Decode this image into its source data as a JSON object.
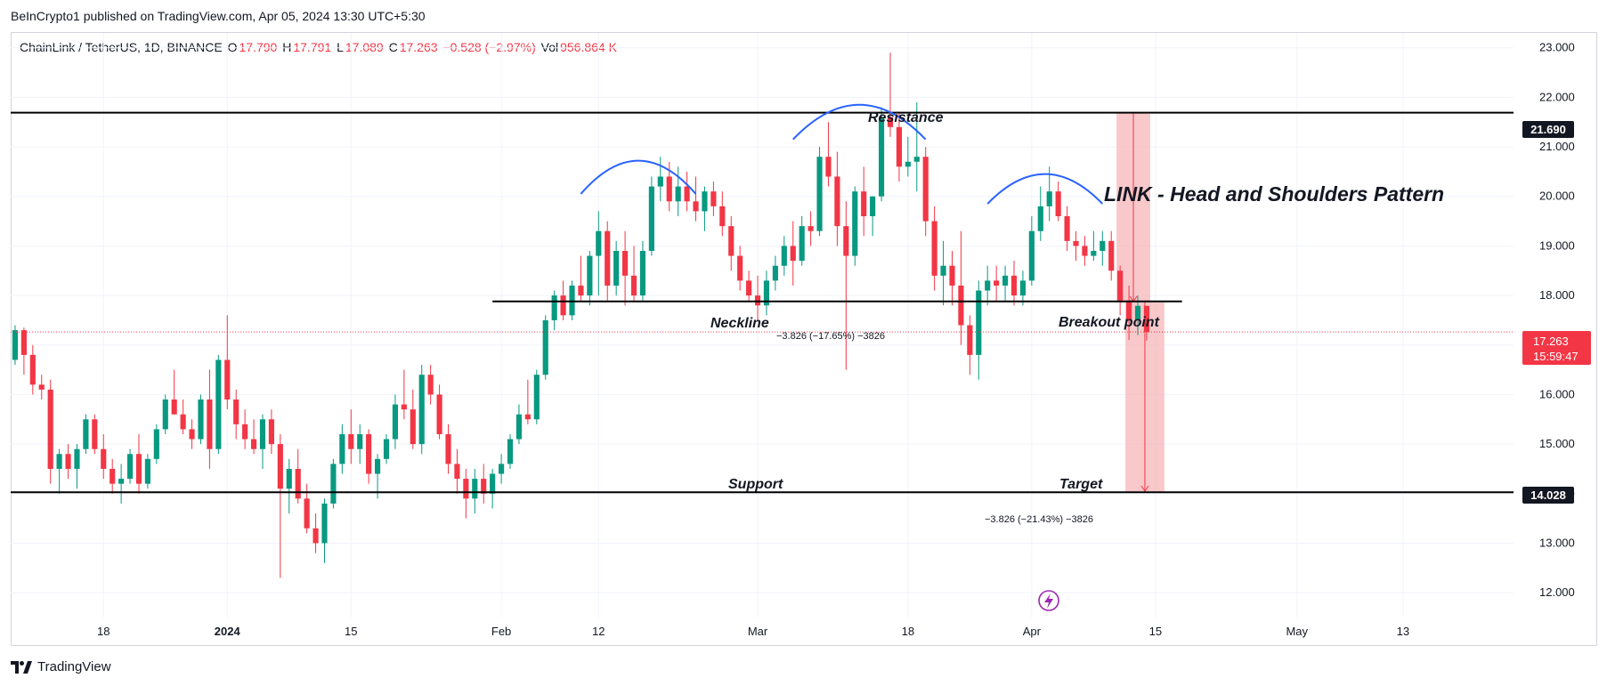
{
  "header": {
    "published": "BeInCrypto1 published on TradingView.com, Apr 05, 2024 13:30 UTC+5:30"
  },
  "legend": {
    "symbol": "ChainLink / TetherUS, 1D, BINANCE",
    "o_label": "O",
    "o_value": "17.790",
    "h_label": "H",
    "h_value": "17.791",
    "l_label": "L",
    "l_value": "17.089",
    "c_label": "C",
    "c_value": "17.263",
    "change": "−0.528 (−2.97%)",
    "vol_label": "Vol",
    "vol_value": "956.864 K"
  },
  "footer": {
    "brand": "TradingView"
  },
  "chart_data": {
    "type": "candlestick",
    "title": "LINK - Head and Shoulders Pattern",
    "ylim": [
      11.5,
      23.3
    ],
    "y_ticks": [
      12,
      13,
      14,
      15,
      16,
      17,
      18,
      19,
      20,
      21,
      22,
      23
    ],
    "y_tick_labels": [
      "12.000",
      "13.000",
      "14.000",
      "15.000",
      "16.000",
      "17.000",
      "18.000",
      "19.000",
      "20.000",
      "21.000",
      "22.000",
      "23.000"
    ],
    "x_range": [
      "2023-12-08",
      "2024-05-26"
    ],
    "x_ticks": [
      {
        "date": "2023-12-18",
        "label": "18"
      },
      {
        "date": "2024-01-01",
        "label": "2024"
      },
      {
        "date": "2024-01-15",
        "label": "15"
      },
      {
        "date": "2024-02-01",
        "label": "Feb"
      },
      {
        "date": "2024-02-12",
        "label": "12"
      },
      {
        "date": "2024-03-01",
        "label": "Mar"
      },
      {
        "date": "2024-03-18",
        "label": "18"
      },
      {
        "date": "2024-04-01",
        "label": "Apr"
      },
      {
        "date": "2024-04-15",
        "label": "15"
      },
      {
        "date": "2024-05-01",
        "label": "May"
      },
      {
        "date": "2024-05-13",
        "label": "13"
      }
    ],
    "candle_start_date": "2023-12-08",
    "candles": [
      [
        16.7,
        17.4,
        16.6,
        17.3
      ],
      [
        17.3,
        17.35,
        16.4,
        16.8
      ],
      [
        16.8,
        17.0,
        16.0,
        16.2
      ],
      [
        16.2,
        16.4,
        15.9,
        16.1
      ],
      [
        16.1,
        16.3,
        14.2,
        14.5
      ],
      [
        14.5,
        14.9,
        14.0,
        14.8
      ],
      [
        14.8,
        15.0,
        14.3,
        14.5
      ],
      [
        14.5,
        15.0,
        14.1,
        14.9
      ],
      [
        14.9,
        15.6,
        14.8,
        15.5
      ],
      [
        15.5,
        15.6,
        14.8,
        14.9
      ],
      [
        14.9,
        15.2,
        14.3,
        14.5
      ],
      [
        14.5,
        14.7,
        14.0,
        14.2
      ],
      [
        14.2,
        14.6,
        13.8,
        14.3
      ],
      [
        14.3,
        14.9,
        14.2,
        14.8
      ],
      [
        14.8,
        15.2,
        14.0,
        14.2
      ],
      [
        14.2,
        14.8,
        14.1,
        14.7
      ],
      [
        14.7,
        15.4,
        14.6,
        15.3
      ],
      [
        15.3,
        16.0,
        15.2,
        15.9
      ],
      [
        15.9,
        16.5,
        15.6,
        15.6
      ],
      [
        15.6,
        15.9,
        15.2,
        15.3
      ],
      [
        15.3,
        15.5,
        14.9,
        15.1
      ],
      [
        15.1,
        16.0,
        15.0,
        15.9
      ],
      [
        15.9,
        16.5,
        14.5,
        14.9
      ],
      [
        14.9,
        16.8,
        14.8,
        16.7
      ],
      [
        16.7,
        17.6,
        15.7,
        15.9
      ],
      [
        15.9,
        16.1,
        15.1,
        15.4
      ],
      [
        15.4,
        15.7,
        14.9,
        15.1
      ],
      [
        15.1,
        15.5,
        14.8,
        14.9
      ],
      [
        14.9,
        15.6,
        14.5,
        15.5
      ],
      [
        15.5,
        15.7,
        14.8,
        15.0
      ],
      [
        15.0,
        15.2,
        12.3,
        14.1
      ],
      [
        14.1,
        14.7,
        13.6,
        14.5
      ],
      [
        14.5,
        14.9,
        13.8,
        13.9
      ],
      [
        13.9,
        14.2,
        13.2,
        13.3
      ],
      [
        13.3,
        13.6,
        12.8,
        13.0
      ],
      [
        13.0,
        13.9,
        12.6,
        13.8
      ],
      [
        13.8,
        14.7,
        13.7,
        14.6
      ],
      [
        14.6,
        15.4,
        14.4,
        15.2
      ],
      [
        15.2,
        15.7,
        14.6,
        14.9
      ],
      [
        14.9,
        15.4,
        14.6,
        15.2
      ],
      [
        15.2,
        15.3,
        14.2,
        14.4
      ],
      [
        14.4,
        14.8,
        13.9,
        14.7
      ],
      [
        14.7,
        15.2,
        14.6,
        15.1
      ],
      [
        15.1,
        16.0,
        14.9,
        15.8
      ],
      [
        15.8,
        16.5,
        15.5,
        15.7
      ],
      [
        15.7,
        16.1,
        14.9,
        15.0
      ],
      [
        15.0,
        16.6,
        14.8,
        16.4
      ],
      [
        16.4,
        16.6,
        15.8,
        16.0
      ],
      [
        16.0,
        16.2,
        15.1,
        15.2
      ],
      [
        15.2,
        15.4,
        14.4,
        14.6
      ],
      [
        14.6,
        14.9,
        14.0,
        14.3
      ],
      [
        14.3,
        14.5,
        13.5,
        13.9
      ],
      [
        13.9,
        14.5,
        13.6,
        14.3
      ],
      [
        14.3,
        14.6,
        13.8,
        14.0
      ],
      [
        14.0,
        14.5,
        13.7,
        14.4
      ],
      [
        14.4,
        14.8,
        14.2,
        14.6
      ],
      [
        14.6,
        15.2,
        14.5,
        15.1
      ],
      [
        15.1,
        15.8,
        15.0,
        15.6
      ],
      [
        15.6,
        16.3,
        15.4,
        15.5
      ],
      [
        15.5,
        16.5,
        15.4,
        16.4
      ],
      [
        16.4,
        17.6,
        16.3,
        17.5
      ],
      [
        17.5,
        18.1,
        17.3,
        18.0
      ],
      [
        18.0,
        18.3,
        17.5,
        17.6
      ],
      [
        17.6,
        18.3,
        17.5,
        18.2
      ],
      [
        18.2,
        18.8,
        17.9,
        18.0
      ],
      [
        18.0,
        18.9,
        17.8,
        18.8
      ],
      [
        18.8,
        19.7,
        18.0,
        19.3
      ],
      [
        19.3,
        19.5,
        17.9,
        18.2
      ],
      [
        18.2,
        19.1,
        18.0,
        18.9
      ],
      [
        18.9,
        19.3,
        17.8,
        18.4
      ],
      [
        18.4,
        19.0,
        17.9,
        18.0
      ],
      [
        18.0,
        19.1,
        17.9,
        18.9
      ],
      [
        18.9,
        20.4,
        18.8,
        20.2
      ],
      [
        20.2,
        20.8,
        19.9,
        20.4
      ],
      [
        20.4,
        20.7,
        19.7,
        19.9
      ],
      [
        19.9,
        20.6,
        19.6,
        20.2
      ],
      [
        20.2,
        20.5,
        19.7,
        19.9
      ],
      [
        19.9,
        20.4,
        19.5,
        19.7
      ],
      [
        19.7,
        20.2,
        19.3,
        20.1
      ],
      [
        20.1,
        20.3,
        19.6,
        19.8
      ],
      [
        19.8,
        20.1,
        19.2,
        19.4
      ],
      [
        19.4,
        19.6,
        18.5,
        18.8
      ],
      [
        18.8,
        19.0,
        18.1,
        18.3
      ],
      [
        18.3,
        18.5,
        17.9,
        18.0
      ],
      [
        18.0,
        18.4,
        17.5,
        17.8
      ],
      [
        17.8,
        18.5,
        17.6,
        18.3
      ],
      [
        18.3,
        18.8,
        18.1,
        18.6
      ],
      [
        18.6,
        19.2,
        18.4,
        19.0
      ],
      [
        19.0,
        19.5,
        18.2,
        18.7
      ],
      [
        18.7,
        19.6,
        18.6,
        19.4
      ],
      [
        19.4,
        19.7,
        19.0,
        19.3
      ],
      [
        19.3,
        21.0,
        19.2,
        20.8
      ],
      [
        20.8,
        21.5,
        20.2,
        20.4
      ],
      [
        20.4,
        20.9,
        19.0,
        19.4
      ],
      [
        19.4,
        19.9,
        16.5,
        18.8
      ],
      [
        18.8,
        20.2,
        18.6,
        20.1
      ],
      [
        20.1,
        20.6,
        19.2,
        19.6
      ],
      [
        19.6,
        20.0,
        19.2,
        20.0
      ],
      [
        20.0,
        21.8,
        19.9,
        21.6
      ],
      [
        21.6,
        22.9,
        21.2,
        21.4
      ],
      [
        21.4,
        21.7,
        20.3,
        20.6
      ],
      [
        20.6,
        21.2,
        20.4,
        20.7
      ],
      [
        20.7,
        21.9,
        20.1,
        20.8
      ],
      [
        20.8,
        21.0,
        19.2,
        19.5
      ],
      [
        19.5,
        19.8,
        18.1,
        18.4
      ],
      [
        18.4,
        19.1,
        17.8,
        18.6
      ],
      [
        18.6,
        18.9,
        17.8,
        18.2
      ],
      [
        18.2,
        19.3,
        17.0,
        17.4
      ],
      [
        17.4,
        17.6,
        16.4,
        16.8
      ],
      [
        16.8,
        18.3,
        16.3,
        18.1
      ],
      [
        18.1,
        18.6,
        17.8,
        18.3
      ],
      [
        18.3,
        18.6,
        17.9,
        18.2
      ],
      [
        18.2,
        18.6,
        17.9,
        18.4
      ],
      [
        18.4,
        18.7,
        17.8,
        18.0
      ],
      [
        18.0,
        18.5,
        17.8,
        18.3
      ],
      [
        18.3,
        19.6,
        18.2,
        19.3
      ],
      [
        19.3,
        20.2,
        19.1,
        19.8
      ],
      [
        19.8,
        20.6,
        19.5,
        20.1
      ],
      [
        20.1,
        20.3,
        19.5,
        19.6
      ],
      [
        19.6,
        19.8,
        18.9,
        19.1
      ],
      [
        19.1,
        19.3,
        18.7,
        19.0
      ],
      [
        19.0,
        19.2,
        18.6,
        18.8
      ],
      [
        18.8,
        19.3,
        18.7,
        18.9
      ],
      [
        18.9,
        19.3,
        18.6,
        19.1
      ],
      [
        19.1,
        19.3,
        18.3,
        18.5
      ],
      [
        18.5,
        18.6,
        17.6,
        17.9
      ],
      [
        17.9,
        18.2,
        17.1,
        17.5
      ],
      [
        17.5,
        18.0,
        17.2,
        17.79
      ],
      [
        17.79,
        17.791,
        17.089,
        17.263
      ]
    ],
    "price_lines": [
      {
        "name": "Resistance",
        "value": 21.69,
        "label": "Resistance"
      },
      {
        "name": "Support",
        "value": 14.028,
        "label": "Support"
      },
      {
        "name": "Neckline",
        "value": 17.88,
        "label": "Neckline"
      }
    ],
    "resistance_value_label": "21.690",
    "support_value_label": "14.028",
    "last_price": {
      "value": 17.263,
      "label": "17.263",
      "countdown": "15:59:47"
    },
    "annotations": {
      "breakout": "Breakout point",
      "target": "Target",
      "measure1": "−3.826 (−17.65%) −3826",
      "measure2": "−3.826 (−21.43%) −3826"
    },
    "colors": {
      "up": "#089981",
      "down": "#f23645",
      "pattern_arc": "#2962ff",
      "measure_fill": "#f6b6b8",
      "grid": "#f0f3fa"
    }
  }
}
